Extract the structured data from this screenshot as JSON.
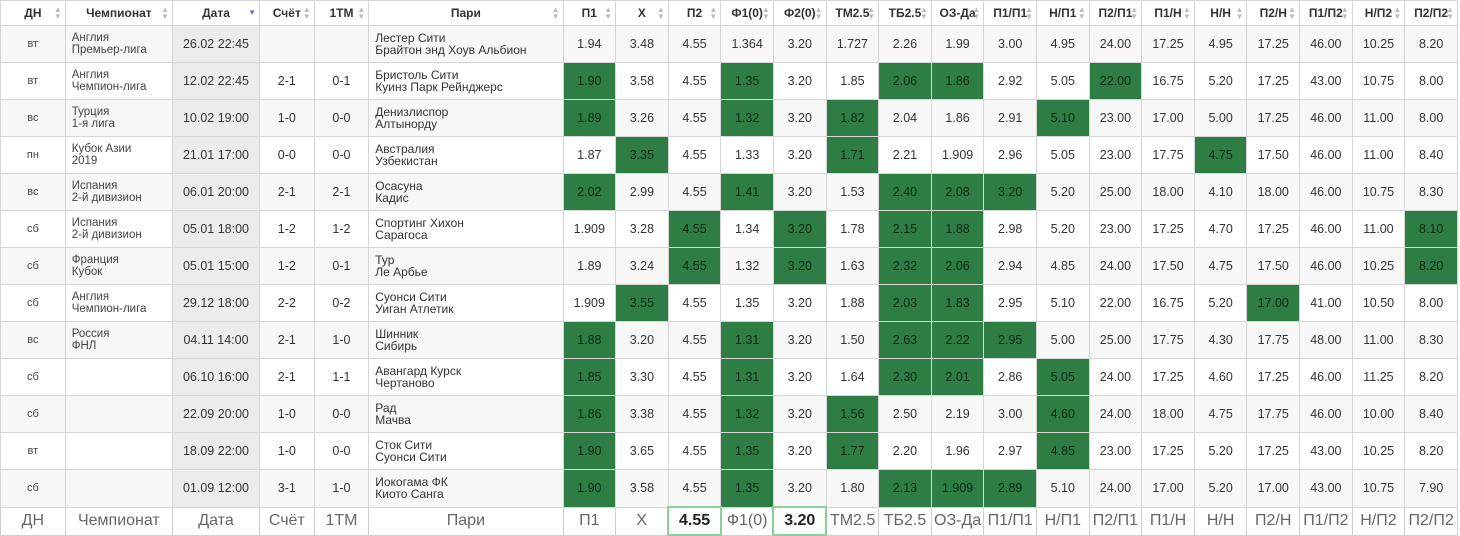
{
  "header": [
    "ДН",
    "Чемпионат",
    "Дата",
    "Счёт",
    "1ТМ",
    "Пари",
    "П1",
    "Х",
    "П2",
    "Ф1(0)",
    "Ф2(0)",
    "ТМ2.5",
    "ТБ2.5",
    "ОЗ-Да",
    "П1/П1",
    "Н/П1",
    "П2/П1",
    "П1/Н",
    "Н/Н",
    "П2/Н",
    "П1/П2",
    "Н/П2",
    "П2/П2"
  ],
  "rows": [
    {
      "day": "вт",
      "champ": [
        "Англия",
        "Премьер-лига"
      ],
      "date": "26.02 22:45",
      "score": "",
      "ht": "",
      "teams": [
        "Лестер Сити",
        "Брайтон энд Хоув Альбион"
      ],
      "odds": [
        "1.94",
        "3.48",
        "4.55",
        "1.364",
        "3.20",
        "1.727",
        "2.26",
        "1.99",
        "3.00",
        "4.95",
        "24.00",
        "17.25",
        "4.95",
        "17.25",
        "46.00",
        "10.25",
        "8.20"
      ],
      "hl": []
    },
    {
      "day": "вт",
      "champ": [
        "Англия",
        "Чемпион-лига"
      ],
      "date": "12.02 22:45",
      "score": "2-1",
      "ht": "0-1",
      "teams": [
        "Бристоль Сити",
        "Куинз Парк Рейнджерс"
      ],
      "odds": [
        "1.90",
        "3.58",
        "4.55",
        "1.35",
        "3.20",
        "1.85",
        "2.06",
        "1.86",
        "2.92",
        "5.05",
        "22.00",
        "16.75",
        "5.20",
        "17.25",
        "43.00",
        "10.75",
        "8.00"
      ],
      "hl": [
        0,
        3,
        6,
        7,
        10
      ]
    },
    {
      "day": "вс",
      "champ": [
        "Турция",
        "1-я лига"
      ],
      "date": "10.02 19:00",
      "score": "1-0",
      "ht": "0-0",
      "teams": [
        "Денизлиспор",
        "Алтынорду"
      ],
      "odds": [
        "1.89",
        "3.26",
        "4.55",
        "1.32",
        "3.20",
        "1.82",
        "2.04",
        "1.86",
        "2.91",
        "5.10",
        "23.00",
        "17.00",
        "5.00",
        "17.25",
        "46.00",
        "11.00",
        "8.00"
      ],
      "hl": [
        0,
        3,
        5,
        9
      ]
    },
    {
      "day": "пн",
      "champ": [
        "Кубок Азии",
        "2019"
      ],
      "date": "21.01 17:00",
      "score": "0-0",
      "ht": "0-0",
      "teams": [
        "Австралия",
        "Узбекистан"
      ],
      "odds": [
        "1.87",
        "3.35",
        "4.55",
        "1.33",
        "3.20",
        "1.71",
        "2.21",
        "1.909",
        "2.96",
        "5.05",
        "23.00",
        "17.75",
        "4.75",
        "17.50",
        "46.00",
        "11.00",
        "8.40"
      ],
      "hl": [
        1,
        5,
        12
      ]
    },
    {
      "day": "вс",
      "champ": [
        "Испания",
        "2-й дивизион"
      ],
      "date": "06.01 20:00",
      "score": "2-1",
      "ht": "2-1",
      "teams": [
        "Осасуна",
        "Кадис"
      ],
      "odds": [
        "2.02",
        "2.99",
        "4.55",
        "1.41",
        "3.20",
        "1.53",
        "2.40",
        "2.08",
        "3.20",
        "5.20",
        "25.00",
        "18.00",
        "4.10",
        "18.00",
        "46.00",
        "10.75",
        "8.30"
      ],
      "hl": [
        0,
        3,
        6,
        7,
        8
      ]
    },
    {
      "day": "сб",
      "champ": [
        "Испания",
        "2-й дивизион"
      ],
      "date": "05.01 18:00",
      "score": "1-2",
      "ht": "1-2",
      "teams": [
        "Спортинг Хихон",
        "Сарагоса"
      ],
      "odds": [
        "1.909",
        "3.28",
        "4.55",
        "1.34",
        "3.20",
        "1.78",
        "2.15",
        "1.88",
        "2.98",
        "5.20",
        "23.00",
        "17.25",
        "4.70",
        "17.25",
        "46.00",
        "11.00",
        "8.10"
      ],
      "hl": [
        2,
        4,
        6,
        7,
        16
      ]
    },
    {
      "day": "сб",
      "champ": [
        "Франция",
        "Кубок"
      ],
      "date": "05.01 15:00",
      "score": "1-2",
      "ht": "0-1",
      "teams": [
        "Тур",
        "Ле Арбье"
      ],
      "odds": [
        "1.89",
        "3.24",
        "4.55",
        "1.32",
        "3.20",
        "1.63",
        "2.32",
        "2.06",
        "2.94",
        "4.85",
        "24.00",
        "17.50",
        "4.75",
        "17.50",
        "46.00",
        "10.25",
        "8.20"
      ],
      "hl": [
        2,
        4,
        6,
        7,
        16
      ]
    },
    {
      "day": "сб",
      "champ": [
        "Англия",
        "Чемпион-лига"
      ],
      "date": "29.12 18:00",
      "score": "2-2",
      "ht": "0-2",
      "teams": [
        "Суонси Сити",
        "Уиган Атлетик"
      ],
      "odds": [
        "1.909",
        "3.55",
        "4.55",
        "1.35",
        "3.20",
        "1.88",
        "2.03",
        "1.83",
        "2.95",
        "5.10",
        "22.00",
        "16.75",
        "5.20",
        "17.00",
        "41.00",
        "10.50",
        "8.00"
      ],
      "hl": [
        1,
        6,
        7,
        13
      ]
    },
    {
      "day": "вс",
      "champ": [
        "Россия",
        "ФНЛ"
      ],
      "date": "04.11 14:00",
      "score": "2-1",
      "ht": "1-0",
      "teams": [
        "Шинник",
        "Сибирь"
      ],
      "odds": [
        "1.88",
        "3.20",
        "4.55",
        "1.31",
        "3.20",
        "1.50",
        "2.63",
        "2.22",
        "2.95",
        "5.00",
        "25.00",
        "17.75",
        "4.30",
        "17.75",
        "48.00",
        "11.00",
        "8.30"
      ],
      "hl": [
        0,
        3,
        6,
        7,
        8
      ]
    },
    {
      "day": "сб",
      "champ": [
        "",
        ""
      ],
      "date": "06.10 16:00",
      "score": "2-1",
      "ht": "1-1",
      "teams": [
        "Авангард Курск",
        "Чертаново"
      ],
      "odds": [
        "1.85",
        "3.30",
        "4.55",
        "1.31",
        "3.20",
        "1.64",
        "2.30",
        "2.01",
        "2.86",
        "5.05",
        "24.00",
        "17.25",
        "4.60",
        "17.25",
        "46.00",
        "11.25",
        "8.20"
      ],
      "hl": [
        0,
        3,
        6,
        7,
        9
      ]
    },
    {
      "day": "сб",
      "champ": [
        "",
        ""
      ],
      "date": "22.09 20:00",
      "score": "1-0",
      "ht": "0-0",
      "teams": [
        "Рад",
        "Мачва"
      ],
      "odds": [
        "1.86",
        "3.38",
        "4.55",
        "1.32",
        "3.20",
        "1.56",
        "2.50",
        "2.19",
        "3.00",
        "4.60",
        "24.00",
        "18.00",
        "4.75",
        "17.75",
        "46.00",
        "10.00",
        "8.40"
      ],
      "hl": [
        0,
        3,
        5,
        9
      ]
    },
    {
      "day": "вт",
      "champ": [
        "",
        ""
      ],
      "date": "18.09 22:00",
      "score": "1-0",
      "ht": "0-0",
      "teams": [
        "Сток Сити",
        "Суонси Сити"
      ],
      "odds": [
        "1.90",
        "3.65",
        "4.55",
        "1.35",
        "3.20",
        "1.77",
        "2.20",
        "1.96",
        "2.97",
        "4.85",
        "23.00",
        "17.25",
        "5.20",
        "17.25",
        "43.00",
        "10.25",
        "8.20"
      ],
      "hl": [
        0,
        3,
        5,
        9
      ]
    },
    {
      "day": "сб",
      "champ": [
        "",
        ""
      ],
      "date": "01.09 12:00",
      "score": "3-1",
      "ht": "1-0",
      "teams": [
        "Иокогама ФК",
        "Киото Санга"
      ],
      "odds": [
        "1.90",
        "3.58",
        "4.55",
        "1.35",
        "3.20",
        "1.80",
        "2.13",
        "1.909",
        "2.89",
        "5.10",
        "24.00",
        "17.00",
        "5.20",
        "17.00",
        "43.00",
        "10.75",
        "7.90"
      ],
      "hl": [
        0,
        3,
        6,
        7,
        8
      ]
    }
  ],
  "footer": [
    {
      "text": "ДН",
      "boxed": false
    },
    {
      "text": "Чемпионат",
      "boxed": false
    },
    {
      "text": "Дата",
      "boxed": false
    },
    {
      "text": "Счёт",
      "boxed": false
    },
    {
      "text": "1ТМ",
      "boxed": false
    },
    {
      "text": "Пари",
      "boxed": false
    },
    {
      "text": "П1",
      "boxed": false
    },
    {
      "text": "Х",
      "boxed": false
    },
    {
      "text": "4.55",
      "boxed": true
    },
    {
      "text": "Ф1(0)",
      "boxed": false
    },
    {
      "text": "3.20",
      "boxed": true
    },
    {
      "text": "ТМ2.5",
      "boxed": false
    },
    {
      "text": "ТБ2.5",
      "boxed": false
    },
    {
      "text": "ОЗ-Да",
      "boxed": false
    },
    {
      "text": "П1/П1",
      "boxed": false
    },
    {
      "text": "Н/П1",
      "boxed": false
    },
    {
      "text": "П2/П1",
      "boxed": false
    },
    {
      "text": "П1/Н",
      "boxed": false
    },
    {
      "text": "Н/Н",
      "boxed": false
    },
    {
      "text": "П2/Н",
      "boxed": false
    },
    {
      "text": "П1/П2",
      "boxed": false
    },
    {
      "text": "Н/П2",
      "boxed": false
    },
    {
      "text": "П2/П2",
      "boxed": false
    }
  ],
  "sorted_column": "Дата",
  "colors": {
    "highlight": "#2e7d45",
    "grid": "#d6d6d6",
    "boxed_border": "#8fcf9f"
  },
  "icons": {
    "sortable": "sort-updown-icon",
    "sorted": "sort-down-icon"
  }
}
